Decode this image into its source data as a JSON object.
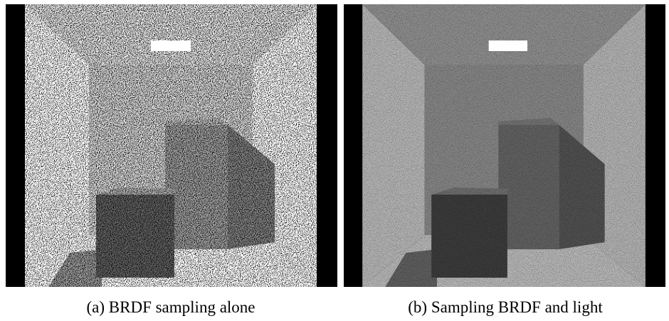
{
  "figure": {
    "panels": [
      {
        "caption": "(a) BRDF sampling alone"
      },
      {
        "caption": "(b) Sampling BRDF and light"
      }
    ]
  }
}
